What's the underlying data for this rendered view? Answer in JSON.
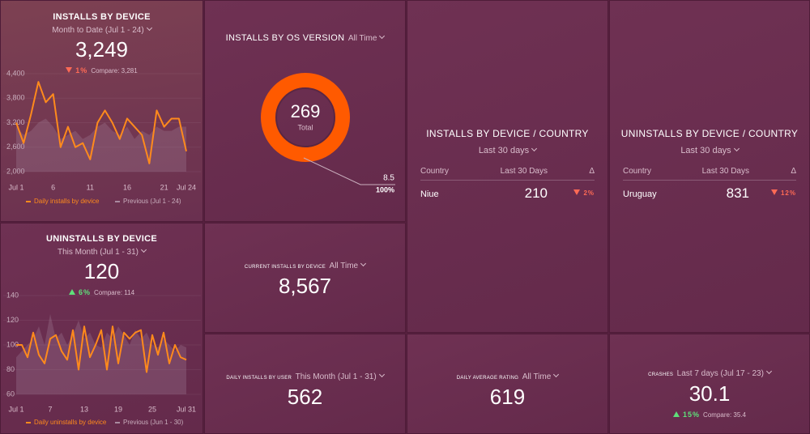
{
  "chart_data": [
    {
      "type": "line",
      "title": "INSTALLS BY DEVICE",
      "subtitle": "Month to Date (Jul 1 - 24)",
      "kpi": {
        "value": "3,249",
        "change": "1%",
        "compare": "Compare: 3,281"
      },
      "categories": [
        "Jul 1",
        null,
        null,
        null,
        null,
        "6",
        null,
        null,
        null,
        null,
        "11",
        null,
        null,
        null,
        null,
        "16",
        null,
        null,
        null,
        null,
        "21",
        null,
        null,
        "Jul 24"
      ],
      "series": [
        {
          "name": "Daily installs by device",
          "color": "#ff8a1c",
          "values": [
            3200,
            2700,
            3400,
            4200,
            3700,
            3900,
            2600,
            3100,
            2600,
            2700,
            2300,
            3200,
            3500,
            3200,
            2800,
            3300,
            3100,
            2900,
            2200,
            3500,
            3100,
            3300,
            3300,
            2500
          ]
        },
        {
          "name": "Previous (Jul 1 - 24)",
          "color": "#a98aa0",
          "values": [
            3100,
            2900,
            3000,
            3200,
            3300,
            3100,
            2800,
            2900,
            3000,
            2800,
            2900,
            3100,
            3200,
            3000,
            2900,
            3100,
            2800,
            3000,
            2900,
            3100,
            3000,
            3000,
            3100,
            3100
          ]
        }
      ],
      "ylim": [
        2000,
        4400
      ],
      "yticks": [
        {
          "value": 2000,
          "label": "2,000"
        },
        {
          "value": 2600,
          "label": "2,600"
        },
        {
          "value": 3200,
          "label": "3,200"
        },
        {
          "value": 3800,
          "label": "3,800"
        },
        {
          "value": 4400,
          "label": "4,400"
        }
      ]
    },
    {
      "type": "line",
      "title": "UNINSTALLS BY DEVICE",
      "subtitle": "This Month (Jul 1 - 31)",
      "kpi": {
        "value": "120",
        "change": "6%",
        "compare": "Compare: 114"
      },
      "categories": [
        "Jul 1",
        null,
        null,
        null,
        null,
        null,
        "7",
        null,
        null,
        null,
        null,
        null,
        "13",
        null,
        null,
        null,
        null,
        null,
        "19",
        null,
        null,
        null,
        null,
        null,
        "25",
        null,
        null,
        null,
        null,
        null,
        "Jul 31"
      ],
      "series": [
        {
          "name": "Daily uninstalls by device",
          "color": "#ff8a1c",
          "values": [
            100,
            100,
            90,
            110,
            92,
            85,
            105,
            108,
            95,
            88,
            112,
            80,
            115,
            90,
            100,
            112,
            80,
            115,
            85,
            110,
            105,
            110,
            112,
            78,
            108,
            92,
            110,
            85,
            100,
            90,
            88
          ]
        },
        {
          "name": "Previous (Jun 1 - 30)",
          "color": "#a98aa0",
          "values": [
            90,
            95,
            100,
            105,
            115,
            100,
            125,
            105,
            110,
            100,
            108,
            120,
            105,
            110,
            100,
            98,
            110,
            105,
            115,
            108,
            100,
            112,
            105,
            110,
            100,
            98,
            105,
            100,
            95,
            100,
            98
          ]
        }
      ],
      "ylim": [
        60,
        140
      ],
      "yticks": [
        60,
        80,
        100,
        120,
        140
      ]
    },
    {
      "type": "pie",
      "title": "INSTALLS BY OS VERSION",
      "subtitle": "All Time",
      "total": "269",
      "total_label": "Total",
      "categories": [
        "8.5"
      ],
      "values": [
        100
      ],
      "value_labels": [
        "100%"
      ],
      "colors": [
        "#ff5a00"
      ]
    }
  ],
  "widgets": [
    {
      "title": "CURRENT INSTALLS BY DEVICE",
      "period": "All Time",
      "value": "8,567"
    },
    {
      "title": "DAILY INSTALLS BY USER",
      "period": "This Month (Jul 1 - 31)",
      "value": "562"
    },
    {
      "title": "DAILY AVERAGE RATING",
      "period": "All Time",
      "value": "619"
    },
    {
      "title": "CRASHES",
      "period": "Last 7 days (Jul 17 - 23)",
      "value": "30.1",
      "change": "15%",
      "compare": "Compare: 35.4"
    }
  ],
  "tables": [
    {
      "title": "INSTALLS BY DEVICE / COUNTRY",
      "period": "Last 30 days",
      "headers": [
        "Country",
        "Last 30 Days",
        "Δ"
      ],
      "rows": [
        [
          "Niue",
          "210",
          "2%"
        ]
      ]
    },
    {
      "title": "UNINSTALLS BY DEVICE / COUNTRY",
      "period": "Last 30 days",
      "headers": [
        "Country",
        "Last 30 Days",
        "Δ"
      ],
      "rows": [
        [
          "Uruguay",
          "831",
          "12%"
        ]
      ]
    }
  ]
}
